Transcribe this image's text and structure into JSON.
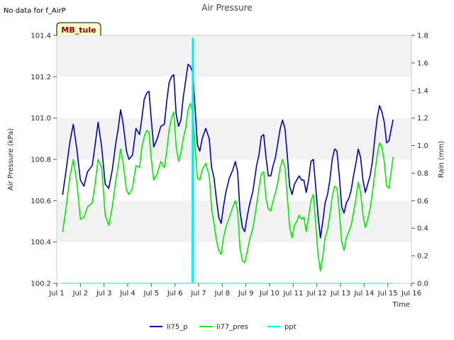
{
  "note_text": "No data for f_AirP",
  "chart_data": {
    "type": "line",
    "title": "Air Pressure",
    "xlabel": "Time",
    "ylabel": "Air Pressure (kPa)",
    "y2label": "Rain (mm)",
    "site_badge": "MB_tule",
    "xlim": [
      1,
      16
    ],
    "ylim": [
      100.2,
      101.4
    ],
    "y2lim": [
      0.0,
      1.8
    ],
    "x_ticks": [
      {
        "value": 1,
        "label": "Jul 1"
      },
      {
        "value": 2,
        "label": "Jul 2"
      },
      {
        "value": 3,
        "label": "Jul 3"
      },
      {
        "value": 4,
        "label": "Jul 4"
      },
      {
        "value": 5,
        "label": "Jul 5"
      },
      {
        "value": 6,
        "label": "Jul 6"
      },
      {
        "value": 7,
        "label": "Jul 7"
      },
      {
        "value": 8,
        "label": "Jul 8"
      },
      {
        "value": 9,
        "label": "Jul 9"
      },
      {
        "value": 10,
        "label": "Jul 10"
      },
      {
        "value": 11,
        "label": "Jul 11"
      },
      {
        "value": 12,
        "label": "Jul 12"
      },
      {
        "value": 13,
        "label": "Jul 13"
      },
      {
        "value": 14,
        "label": "Jul 14"
      },
      {
        "value": 15,
        "label": "Jul 15"
      },
      {
        "value": 16,
        "label": "Jul 16"
      }
    ],
    "y_ticks": [
      "100.2",
      "100.4",
      "100.6",
      "100.8",
      "101.0",
      "101.2",
      "101.4"
    ],
    "y2_ticks": [
      "0.0",
      "0.2",
      "0.4",
      "0.6",
      "0.8",
      "1.0",
      "1.2",
      "1.4",
      "1.6",
      "1.8"
    ],
    "grid": false,
    "bands": "alternating light-grey horizontal bands",
    "legend_position": "bottom-center",
    "series": [
      {
        "name": "li75_p",
        "color": "#0000cc",
        "axis": "left",
        "points": [
          [
            1.25,
            100.63
          ],
          [
            1.4,
            100.75
          ],
          [
            1.55,
            100.88
          ],
          [
            1.7,
            100.97
          ],
          [
            1.85,
            100.85
          ],
          [
            2.0,
            100.7
          ],
          [
            2.15,
            100.67
          ],
          [
            2.3,
            100.74
          ],
          [
            2.5,
            100.77
          ],
          [
            2.6,
            100.85
          ],
          [
            2.75,
            100.98
          ],
          [
            2.9,
            100.86
          ],
          [
            3.05,
            100.68
          ],
          [
            3.2,
            100.66
          ],
          [
            3.35,
            100.75
          ],
          [
            3.5,
            100.88
          ],
          [
            3.6,
            100.95
          ],
          [
            3.7,
            101.04
          ],
          [
            3.8,
            100.98
          ],
          [
            3.95,
            100.84
          ],
          [
            4.05,
            100.8
          ],
          [
            4.2,
            100.82
          ],
          [
            4.35,
            100.95
          ],
          [
            4.5,
            100.92
          ],
          [
            4.6,
            101.0
          ],
          [
            4.7,
            101.09
          ],
          [
            4.8,
            101.12
          ],
          [
            4.9,
            101.13
          ],
          [
            5.0,
            100.99
          ],
          [
            5.1,
            100.86
          ],
          [
            5.25,
            100.9
          ],
          [
            5.4,
            100.96
          ],
          [
            5.55,
            100.97
          ],
          [
            5.65,
            101.08
          ],
          [
            5.75,
            101.17
          ],
          [
            5.85,
            101.2
          ],
          [
            5.95,
            101.21
          ],
          [
            6.05,
            101.02
          ],
          [
            6.15,
            100.96
          ],
          [
            6.25,
            100.99
          ],
          [
            6.35,
            101.1
          ],
          [
            6.45,
            101.18
          ],
          [
            6.55,
            101.26
          ],
          [
            6.65,
            101.25
          ],
          [
            6.75,
            101.22
          ],
          [
            6.85,
            101.05
          ],
          [
            6.95,
            100.87
          ],
          [
            7.05,
            100.84
          ],
          [
            7.15,
            100.9
          ],
          [
            7.3,
            100.95
          ],
          [
            7.45,
            100.9
          ],
          [
            7.55,
            100.76
          ],
          [
            7.65,
            100.71
          ],
          [
            7.75,
            100.61
          ],
          [
            7.85,
            100.52
          ],
          [
            7.95,
            100.49
          ],
          [
            8.05,
            100.57
          ],
          [
            8.15,
            100.64
          ],
          [
            8.3,
            100.71
          ],
          [
            8.45,
            100.75
          ],
          [
            8.55,
            100.79
          ],
          [
            8.65,
            100.74
          ],
          [
            8.75,
            100.55
          ],
          [
            8.85,
            100.47
          ],
          [
            8.95,
            100.45
          ],
          [
            9.05,
            100.52
          ],
          [
            9.15,
            100.58
          ],
          [
            9.3,
            100.65
          ],
          [
            9.45,
            100.77
          ],
          [
            9.55,
            100.82
          ],
          [
            9.65,
            100.91
          ],
          [
            9.75,
            100.92
          ],
          [
            9.85,
            100.81
          ],
          [
            9.95,
            100.72
          ],
          [
            10.05,
            100.72
          ],
          [
            10.15,
            100.77
          ],
          [
            10.25,
            100.81
          ],
          [
            10.35,
            100.88
          ],
          [
            10.45,
            100.95
          ],
          [
            10.55,
            100.99
          ],
          [
            10.65,
            100.95
          ],
          [
            10.75,
            100.82
          ],
          [
            10.85,
            100.67
          ],
          [
            10.95,
            100.63
          ],
          [
            11.05,
            100.68
          ],
          [
            11.15,
            100.7
          ],
          [
            11.25,
            100.72
          ],
          [
            11.35,
            100.7
          ],
          [
            11.45,
            100.7
          ],
          [
            11.55,
            100.64
          ],
          [
            11.65,
            100.7
          ],
          [
            11.75,
            100.79
          ],
          [
            11.85,
            100.8
          ],
          [
            11.95,
            100.67
          ],
          [
            12.05,
            100.53
          ],
          [
            12.15,
            100.42
          ],
          [
            12.25,
            100.5
          ],
          [
            12.35,
            100.59
          ],
          [
            12.45,
            100.63
          ],
          [
            12.55,
            100.7
          ],
          [
            12.65,
            100.8
          ],
          [
            12.75,
            100.85
          ],
          [
            12.85,
            100.84
          ],
          [
            12.95,
            100.72
          ],
          [
            13.05,
            100.57
          ],
          [
            13.15,
            100.54
          ],
          [
            13.25,
            100.59
          ],
          [
            13.35,
            100.61
          ],
          [
            13.45,
            100.65
          ],
          [
            13.55,
            100.72
          ],
          [
            13.65,
            100.78
          ],
          [
            13.75,
            100.85
          ],
          [
            13.85,
            100.81
          ],
          [
            13.95,
            100.7
          ],
          [
            14.05,
            100.64
          ],
          [
            14.15,
            100.68
          ],
          [
            14.25,
            100.72
          ],
          [
            14.35,
            100.79
          ],
          [
            14.45,
            100.9
          ],
          [
            14.55,
            101.0
          ],
          [
            14.65,
            101.06
          ],
          [
            14.75,
            101.03
          ],
          [
            14.85,
            100.98
          ],
          [
            14.95,
            100.88
          ],
          [
            15.05,
            100.89
          ],
          [
            15.15,
            100.95
          ],
          [
            15.22,
            100.99
          ]
        ]
      },
      {
        "name": "li77_pres",
        "color": "#00ee00",
        "axis": "left",
        "points": [
          [
            1.25,
            100.45
          ],
          [
            1.4,
            100.57
          ],
          [
            1.55,
            100.71
          ],
          [
            1.7,
            100.8
          ],
          [
            1.85,
            100.69
          ],
          [
            2.0,
            100.51
          ],
          [
            2.15,
            100.52
          ],
          [
            2.3,
            100.57
          ],
          [
            2.5,
            100.59
          ],
          [
            2.6,
            100.66
          ],
          [
            2.75,
            100.8
          ],
          [
            2.9,
            100.76
          ],
          [
            3.05,
            100.53
          ],
          [
            3.2,
            100.48
          ],
          [
            3.35,
            100.57
          ],
          [
            3.5,
            100.7
          ],
          [
            3.6,
            100.77
          ],
          [
            3.7,
            100.85
          ],
          [
            3.8,
            100.79
          ],
          [
            3.95,
            100.65
          ],
          [
            4.05,
            100.63
          ],
          [
            4.2,
            100.66
          ],
          [
            4.35,
            100.77
          ],
          [
            4.5,
            100.76
          ],
          [
            4.6,
            100.86
          ],
          [
            4.7,
            100.91
          ],
          [
            4.8,
            100.94
          ],
          [
            4.9,
            100.93
          ],
          [
            5.0,
            100.8
          ],
          [
            5.1,
            100.7
          ],
          [
            5.25,
            100.73
          ],
          [
            5.4,
            100.79
          ],
          [
            5.55,
            100.76
          ],
          [
            5.65,
            100.84
          ],
          [
            5.75,
            100.94
          ],
          [
            5.85,
            101.0
          ],
          [
            5.95,
            101.03
          ],
          [
            6.05,
            100.86
          ],
          [
            6.15,
            100.79
          ],
          [
            6.25,
            100.83
          ],
          [
            6.35,
            100.9
          ],
          [
            6.45,
            100.95
          ],
          [
            6.55,
            101.04
          ],
          [
            6.65,
            101.07
          ],
          [
            6.75,
            101.03
          ],
          [
            6.85,
            100.86
          ],
          [
            6.95,
            100.71
          ],
          [
            7.05,
            100.7
          ],
          [
            7.15,
            100.75
          ],
          [
            7.3,
            100.78
          ],
          [
            7.45,
            100.72
          ],
          [
            7.55,
            100.56
          ],
          [
            7.65,
            100.49
          ],
          [
            7.75,
            100.41
          ],
          [
            7.85,
            100.36
          ],
          [
            7.95,
            100.34
          ],
          [
            8.05,
            100.42
          ],
          [
            8.15,
            100.47
          ],
          [
            8.3,
            100.52
          ],
          [
            8.45,
            100.57
          ],
          [
            8.55,
            100.6
          ],
          [
            8.65,
            100.55
          ],
          [
            8.75,
            100.37
          ],
          [
            8.85,
            100.31
          ],
          [
            8.95,
            100.3
          ],
          [
            9.05,
            100.35
          ],
          [
            9.15,
            100.41
          ],
          [
            9.3,
            100.47
          ],
          [
            9.45,
            100.58
          ],
          [
            9.55,
            100.66
          ],
          [
            9.65,
            100.73
          ],
          [
            9.75,
            100.74
          ],
          [
            9.85,
            100.61
          ],
          [
            9.95,
            100.56
          ],
          [
            10.05,
            100.55
          ],
          [
            10.15,
            100.6
          ],
          [
            10.25,
            100.64
          ],
          [
            10.35,
            100.69
          ],
          [
            10.45,
            100.76
          ],
          [
            10.55,
            100.8
          ],
          [
            10.65,
            100.76
          ],
          [
            10.75,
            100.62
          ],
          [
            10.85,
            100.47
          ],
          [
            10.95,
            100.42
          ],
          [
            11.05,
            100.48
          ],
          [
            11.15,
            100.5
          ],
          [
            11.25,
            100.53
          ],
          [
            11.35,
            100.51
          ],
          [
            11.45,
            100.52
          ],
          [
            11.55,
            100.45
          ],
          [
            11.65,
            100.52
          ],
          [
            11.75,
            100.6
          ],
          [
            11.85,
            100.63
          ],
          [
            11.95,
            100.49
          ],
          [
            12.05,
            100.34
          ],
          [
            12.15,
            100.26
          ],
          [
            12.25,
            100.33
          ],
          [
            12.35,
            100.42
          ],
          [
            12.45,
            100.46
          ],
          [
            12.55,
            100.53
          ],
          [
            12.65,
            100.62
          ],
          [
            12.75,
            100.67
          ],
          [
            12.85,
            100.66
          ],
          [
            12.95,
            100.55
          ],
          [
            13.05,
            100.4
          ],
          [
            13.15,
            100.36
          ],
          [
            13.25,
            100.42
          ],
          [
            13.35,
            100.45
          ],
          [
            13.45,
            100.48
          ],
          [
            13.55,
            100.54
          ],
          [
            13.65,
            100.61
          ],
          [
            13.75,
            100.69
          ],
          [
            13.85,
            100.64
          ],
          [
            13.95,
            100.53
          ],
          [
            14.05,
            100.47
          ],
          [
            14.15,
            100.51
          ],
          [
            14.25,
            100.56
          ],
          [
            14.35,
            100.64
          ],
          [
            14.45,
            100.73
          ],
          [
            14.55,
            100.82
          ],
          [
            14.65,
            100.88
          ],
          [
            14.75,
            100.86
          ],
          [
            14.85,
            100.79
          ],
          [
            14.95,
            100.67
          ],
          [
            15.05,
            100.66
          ],
          [
            15.15,
            100.75
          ],
          [
            15.22,
            100.81
          ]
        ]
      },
      {
        "name": "ppt",
        "color": "#00eeee",
        "axis": "right",
        "points": [
          [
            1.25,
            0.0
          ],
          [
            6.72,
            0.0
          ],
          [
            6.74,
            1.78
          ],
          [
            6.77,
            1.78
          ],
          [
            6.78,
            0.0
          ],
          [
            15.22,
            0.0
          ]
        ]
      }
    ]
  }
}
